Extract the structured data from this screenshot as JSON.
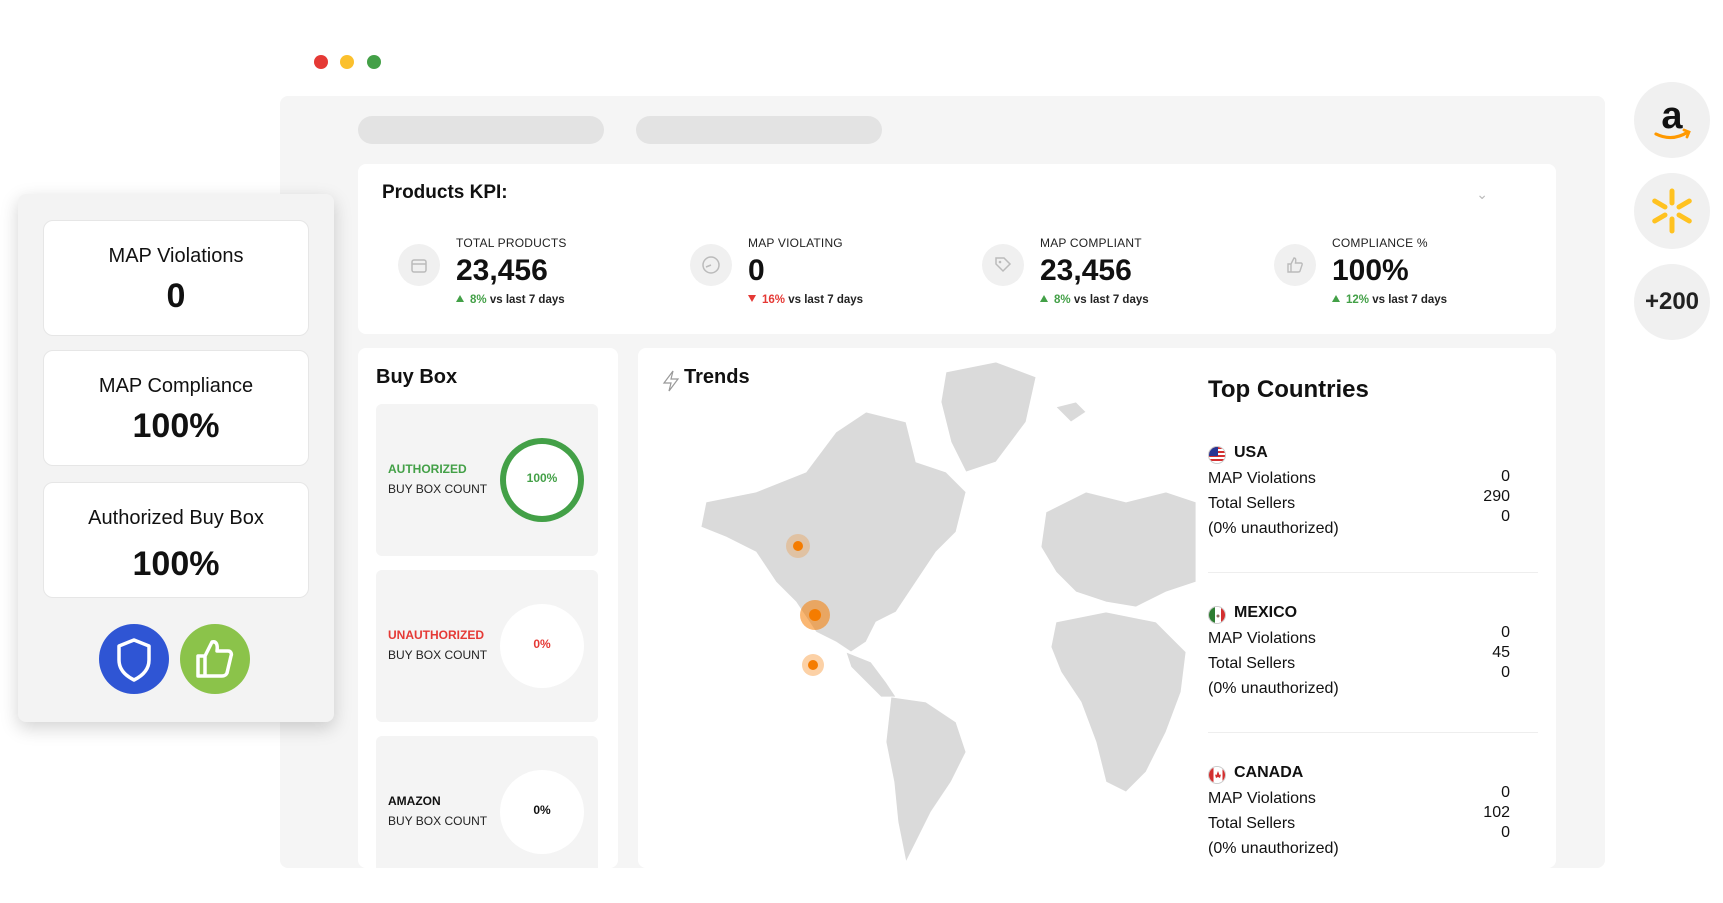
{
  "window_dots": [
    "#e53935",
    "#fbc02d",
    "#43a047"
  ],
  "kpi": {
    "title": "Products KPI:",
    "items": [
      {
        "label": "TOTAL PRODUCTS",
        "value": "23,456",
        "delta": "8%",
        "direction": "up",
        "suffix": "vs last 7 days",
        "icon": "box-icon"
      },
      {
        "label": "MAP VIOLATING",
        "value": "0",
        "delta": "16%",
        "direction": "down",
        "suffix": "vs last 7 days",
        "icon": "gauge-icon"
      },
      {
        "label": "MAP COMPLIANT",
        "value": "23,456",
        "delta": "8%",
        "direction": "up",
        "suffix": "vs last 7 days",
        "icon": "tag-icon"
      },
      {
        "label": "COMPLIANCE %",
        "value": "100%",
        "delta": "12%",
        "direction": "up",
        "suffix": "vs last 7 days",
        "icon": "thumbs-up-icon"
      }
    ]
  },
  "buybox": {
    "title": "Buy Box",
    "cards": [
      {
        "type": "AUTHORIZED",
        "sub": "BUY BOX COUNT",
        "pct": "100%",
        "fraction": 1.0,
        "color": "#43a047"
      },
      {
        "type": "UNAUTHORIZED",
        "sub": "BUY BOX COUNT",
        "pct": "0%",
        "fraction": 0.0,
        "color": "#e53935"
      },
      {
        "type": "AMAZON",
        "sub": "BUY BOX COUNT",
        "pct": "0%",
        "fraction": 0.0,
        "color": "#111111"
      }
    ]
  },
  "trends": {
    "title": "Trends",
    "hotspot_color": "#f57c00"
  },
  "top_countries": {
    "title": "Top Countries",
    "countries": [
      {
        "name": "USA",
        "violations_label": "MAP Violations",
        "sellers_label": "Total Sellers",
        "unauth_label": "(0% unauthorized)",
        "violations": "0",
        "sellers": "290",
        "unauthorized": "0"
      },
      {
        "name": "MEXICO",
        "violations_label": "MAP Violations",
        "sellers_label": "Total Sellers",
        "unauth_label": "(0% unauthorized)",
        "violations": "0",
        "sellers": "45",
        "unauthorized": "0"
      },
      {
        "name": "CANADA",
        "violations_label": "MAP Violations",
        "sellers_label": "Total Sellers",
        "unauth_label": "(0% unauthorized)",
        "violations": "0",
        "sellers": "102",
        "unauthorized": "0"
      }
    ]
  },
  "summary_panel": {
    "cards": [
      {
        "label": "MAP Violations",
        "value": "0"
      },
      {
        "label": "MAP Compliance",
        "value": "100%"
      },
      {
        "label": "Authorized Buy Box",
        "value": "100%"
      }
    ],
    "buttons": [
      {
        "icon": "shield-icon",
        "color": "#2f55d4"
      },
      {
        "icon": "thumbs-up-icon",
        "color": "#8bc34a"
      }
    ]
  },
  "marketplaces": [
    {
      "icon": "amazon-logo-icon"
    },
    {
      "icon": "walmart-logo-icon"
    },
    {
      "label": "+200"
    }
  ]
}
